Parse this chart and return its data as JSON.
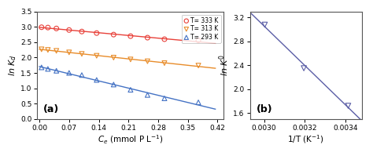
{
  "panel_a": {
    "title": "(a)",
    "xlabel": "$C_e$ (mmol P L$^{-1}$)",
    "ylabel": "ln $K_d$",
    "xlim": [
      -0.005,
      0.435
    ],
    "ylim": [
      0.0,
      3.5
    ],
    "xticks": [
      0.0,
      0.07,
      0.14,
      0.21,
      0.28,
      0.35,
      0.42
    ],
    "yticks": [
      0.0,
      0.5,
      1.0,
      1.5,
      2.0,
      2.5,
      3.0,
      3.5
    ],
    "series": [
      {
        "label": "T= 333 K",
        "color": "#e8413a",
        "marker": "o",
        "x": [
          0.005,
          0.02,
          0.04,
          0.07,
          0.1,
          0.135,
          0.175,
          0.215,
          0.255,
          0.295,
          0.375
        ],
        "y": [
          2.99,
          2.98,
          2.95,
          2.9,
          2.85,
          2.8,
          2.75,
          2.7,
          2.65,
          2.6,
          2.56
        ]
      },
      {
        "label": "T= 313 K",
        "color": "#e88c2a",
        "marker": "v",
        "x": [
          0.005,
          0.02,
          0.04,
          0.07,
          0.1,
          0.135,
          0.175,
          0.215,
          0.255,
          0.295,
          0.375
        ],
        "y": [
          2.27,
          2.25,
          2.22,
          2.17,
          2.12,
          2.06,
          2.0,
          1.94,
          1.88,
          1.82,
          1.74
        ]
      },
      {
        "label": "T= 293 K",
        "color": "#4472c4",
        "marker": "^",
        "x": [
          0.005,
          0.02,
          0.04,
          0.07,
          0.1,
          0.135,
          0.175,
          0.215,
          0.255,
          0.295,
          0.375
        ],
        "y": [
          1.68,
          1.63,
          1.57,
          1.5,
          1.43,
          1.27,
          1.12,
          0.95,
          0.78,
          0.67,
          0.54
        ]
      }
    ]
  },
  "panel_b": {
    "title": "(b)",
    "xlabel": "1/T (K$^{-1}$)",
    "ylabel": "ln $K^0$",
    "xlim": [
      0.00293,
      0.00348
    ],
    "ylim": [
      1.5,
      3.3
    ],
    "xticks": [
      0.003,
      0.0032,
      0.0034
    ],
    "yticks": [
      1.6,
      2.0,
      2.4,
      2.8,
      3.2
    ],
    "color": "#5b5ea6",
    "x": [
      0.003003,
      0.003195,
      0.003413
    ],
    "y": [
      3.08,
      2.35,
      1.72
    ]
  },
  "outer_bg": "#d8d8d8",
  "ax_bg": "#ffffff",
  "fig_bg": "#ffffff"
}
